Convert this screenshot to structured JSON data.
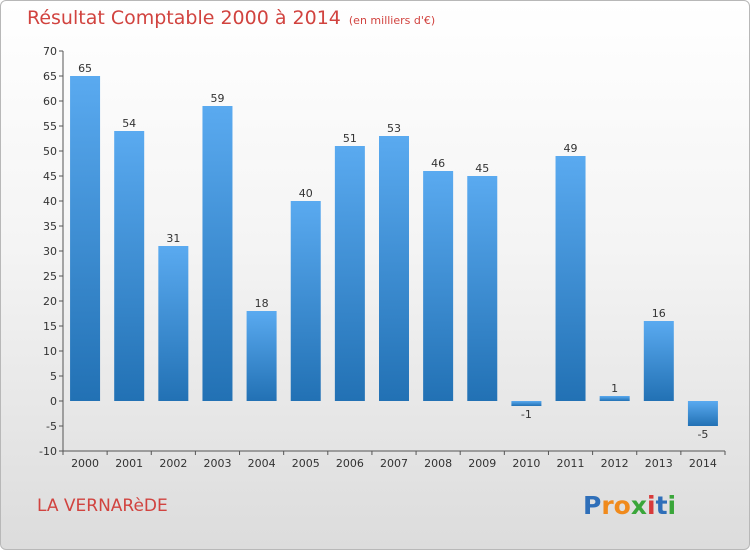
{
  "title": "Résultat Comptable 2000 à 2014",
  "unit": "(en milliers d'€)",
  "place": "LA VERNARèDE",
  "logo": {
    "letters": [
      "P",
      "r",
      "o",
      "x",
      "i",
      "t",
      "i"
    ],
    "colors": [
      "#2f6fb9",
      "#f08a1c",
      "#f08a1c",
      "#3aa63a",
      "#d83a3a",
      "#2f6fb9",
      "#3aa63a"
    ]
  },
  "colors": {
    "bar_top": "#5aaaf0",
    "bar_bottom": "#2271b4",
    "text_red": "#d1433f"
  },
  "chart_data": {
    "type": "bar",
    "categories": [
      "2000",
      "2001",
      "2002",
      "2003",
      "2004",
      "2005",
      "2006",
      "2007",
      "2008",
      "2009",
      "2010",
      "2011",
      "2012",
      "2013",
      "2014"
    ],
    "values": [
      65,
      54,
      31,
      59,
      18,
      40,
      51,
      53,
      46,
      45,
      -1,
      49,
      1,
      16,
      -5
    ],
    "value_labels": [
      "65",
      "54",
      "31",
      "59",
      "18",
      "40",
      "51",
      "53",
      "46",
      "45",
      "-1",
      "49",
      "1",
      "16",
      "-5"
    ],
    "ylim": [
      -10,
      70
    ],
    "yticks": [
      -10,
      -5,
      0,
      5,
      10,
      15,
      20,
      25,
      30,
      35,
      40,
      45,
      50,
      55,
      60,
      65,
      70
    ],
    "grid": false,
    "legend": "none"
  }
}
